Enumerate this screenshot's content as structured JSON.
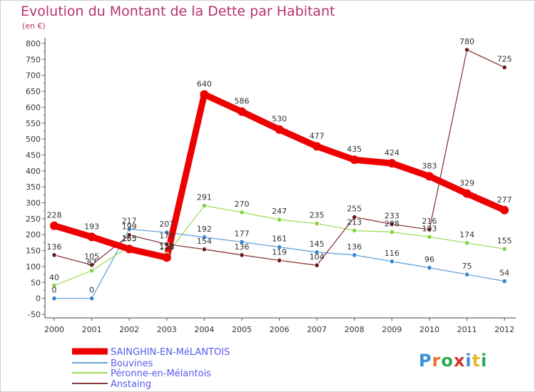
{
  "title": "Evolution du Montant de la Dette par Habitant",
  "subtitle": "(en €)",
  "logo_text": "Proxiti",
  "logo_letter_colors": [
    "#3a8fd8",
    "#e8702a",
    "#2fa84f",
    "#d8332a",
    "#3a8fd8",
    "#e8b72a",
    "#2fa84f"
  ],
  "chart_data": {
    "type": "line",
    "title": "Evolution du Montant de la Dette par Habitant",
    "subtitle": "(en €)",
    "xlabel": "",
    "ylabel": "",
    "x": [
      "2000",
      "2001",
      "2002",
      "2003",
      "2004",
      "2005",
      "2006",
      "2007",
      "2008",
      "2009",
      "2010",
      "2011",
      "2012"
    ],
    "yticks": [
      "-50",
      "0",
      "50",
      "100",
      "150",
      "200",
      "250",
      "300",
      "350",
      "400",
      "450",
      "500",
      "550",
      "600",
      "650",
      "700",
      "750",
      "800"
    ],
    "ylim": [
      -50,
      800
    ],
    "grid": false,
    "legend_position": "bottom-left",
    "series": [
      {
        "name": "SAINGHIN-EN-MéLANTOIS",
        "color": "#ee0000",
        "marker_color": "#ee0000",
        "width": 9,
        "values": [
          228,
          193,
          155,
          128,
          640,
          586,
          530,
          477,
          435,
          424,
          383,
          329,
          277
        ],
        "labels": [
          "228",
          "193",
          "155",
          "128",
          "640",
          "586",
          "530",
          "477",
          "435",
          "424",
          "383",
          "329",
          "277"
        ]
      },
      {
        "name": "Bouvines",
        "color": "#6aa3d8",
        "marker_color": "#3a86cc",
        "width": 1.3,
        "values": [
          0,
          0,
          217,
          207,
          192,
          177,
          161,
          145,
          136,
          116,
          96,
          75,
          54
        ],
        "labels": [
          "0",
          "0",
          "217",
          "207",
          "192",
          "177",
          "161",
          "145",
          "136",
          "116",
          "96",
          "75",
          "54"
        ]
      },
      {
        "name": "Péronne-en-Mélantois",
        "color": "#9ddc5a",
        "marker_color": "#88d044",
        "width": 1.3,
        "values": [
          40,
          87,
          163,
          138,
          291,
          270,
          247,
          235,
          213,
          208,
          193,
          174,
          155
        ],
        "labels": [
          "40",
          "87",
          "163",
          "138",
          "291",
          "270",
          "247",
          "235",
          "213",
          "208",
          "193",
          "174",
          "155"
        ]
      },
      {
        "name": "Anstaing",
        "color": "#8a3a3a",
        "marker_color": "#6a1a1a",
        "width": 1.3,
        "values": [
          136,
          105,
          199,
          170,
          154,
          136,
          119,
          104,
          255,
          233,
          216,
          780,
          725
        ],
        "labels": [
          "136",
          "105",
          "199",
          "170",
          "154",
          "136",
          "119",
          "104",
          "255",
          "233",
          "216",
          "780",
          "725"
        ]
      }
    ]
  }
}
